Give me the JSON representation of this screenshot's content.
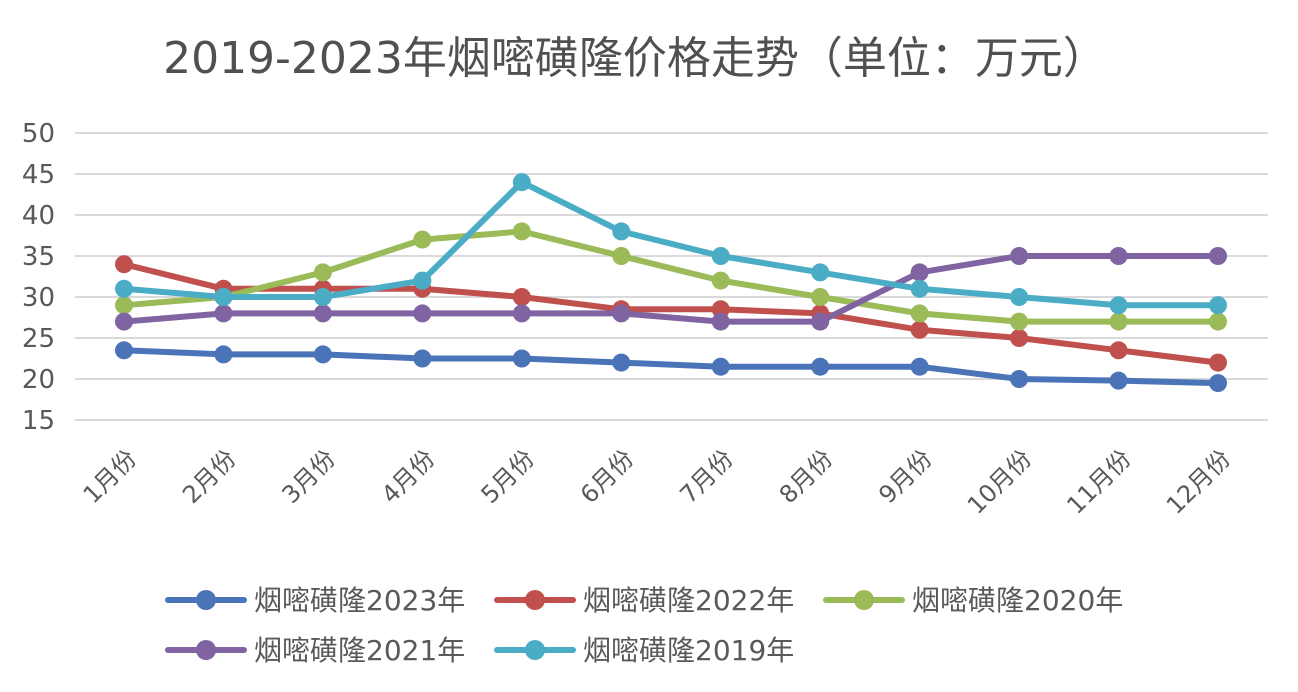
{
  "chart_data": {
    "type": "line",
    "title": "2019-2023年烟嘧磺隆价格走势（单位：万元）",
    "xlabel": "",
    "ylabel": "",
    "categories": [
      "1月份",
      "2月份",
      "3月份",
      "4月份",
      "5月份",
      "6月份",
      "7月份",
      "8月份",
      "9月份",
      "10月份",
      "11月份",
      "12月份"
    ],
    "ylim": [
      15,
      50
    ],
    "yticks": [
      15,
      20,
      25,
      30,
      35,
      40,
      45,
      50
    ],
    "grid": true,
    "legend_position": "bottom",
    "series": [
      {
        "name": "烟嘧磺隆2023年",
        "color": "#4a73b8",
        "values": [
          23.5,
          23,
          23,
          22.5,
          22.5,
          22,
          21.5,
          21.5,
          21.5,
          20,
          19.8,
          19.5
        ]
      },
      {
        "name": "烟嘧磺隆2022年",
        "color": "#c0504d",
        "values": [
          34,
          31,
          31,
          31,
          30,
          28.5,
          28.5,
          28,
          26,
          25,
          23.5,
          22
        ]
      },
      {
        "name": "烟嘧磺隆2020年",
        "color": "#9bbb59",
        "values": [
          29,
          30,
          33,
          37,
          38,
          35,
          32,
          30,
          28,
          27,
          27,
          27
        ]
      },
      {
        "name": "烟嘧磺隆2021年",
        "color": "#8064a2",
        "values": [
          27,
          28,
          28,
          28,
          28,
          28,
          27,
          27,
          33,
          35,
          35,
          35
        ]
      },
      {
        "name": "烟嘧磺隆2019年",
        "color": "#4bacc6",
        "values": [
          31,
          30,
          30,
          32,
          44,
          38,
          35,
          33,
          31,
          30,
          29,
          29
        ]
      }
    ]
  }
}
